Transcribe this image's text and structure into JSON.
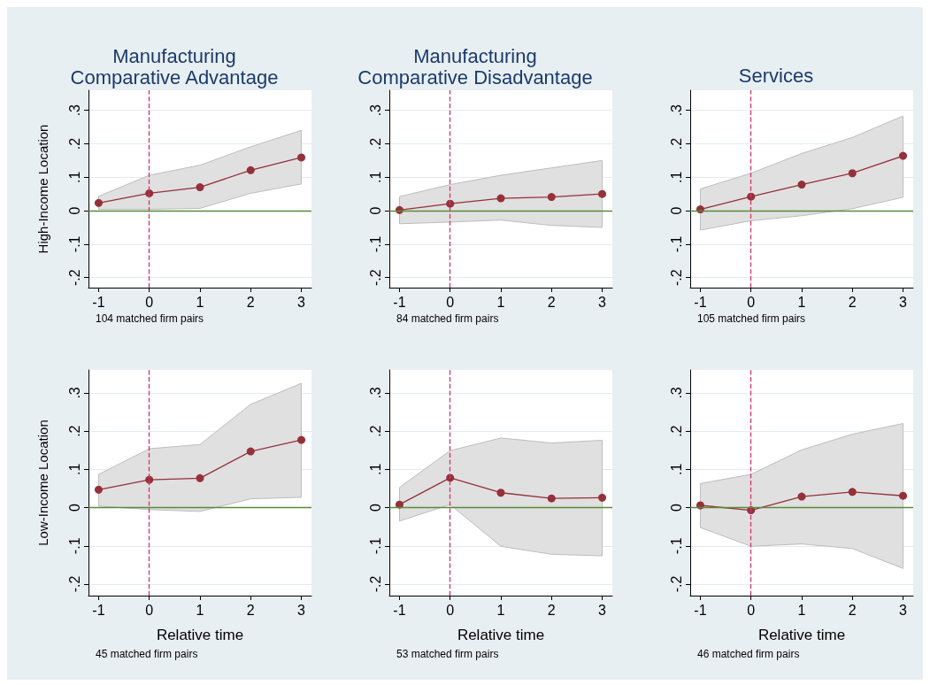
{
  "chart_data": [
    {
      "type": "line",
      "title": "Manufacturing\nComparative Advantage",
      "ylabel": "High-Income Location",
      "x": [
        -1,
        0,
        1,
        2,
        3
      ],
      "series": [
        {
          "color": "#953139",
          "values": [
            0.023,
            0.052,
            0.07,
            0.121,
            0.159
          ],
          "lower": [
            0.004,
            0.004,
            0.007,
            0.052,
            0.08
          ],
          "upper": [
            0.043,
            0.106,
            0.136,
            0.191,
            0.24
          ]
        }
      ],
      "xlim": [
        -1.2,
        3.2
      ],
      "ylim": [
        -0.23,
        0.36
      ],
      "xticks": [
        -1,
        0,
        1,
        2,
        3
      ],
      "yticks": [
        {
          "value": -0.2,
          "label": "-.2"
        },
        {
          "value": -0.1,
          "label": "-.1"
        },
        {
          "value": 0,
          "label": "0"
        },
        {
          "value": 0.1,
          "label": ".1"
        },
        {
          "value": 0.2,
          "label": ".2"
        },
        {
          "value": 0.3,
          "label": ".3"
        }
      ],
      "grid": "y",
      "marker": "circle",
      "line_style": "solid",
      "ref_lines": [
        {
          "axis": "x",
          "value": 0,
          "color": "#d6336c",
          "line_style": "dashed"
        },
        {
          "axis": "y",
          "value": 0,
          "color": "#5a8a3a",
          "line_style": "solid"
        }
      ],
      "annotations": [
        "104 matched firm pairs"
      ]
    },
    {
      "type": "line",
      "title": "Manufacturing\nComparative Disadvantage",
      "x": [
        -1,
        0,
        1,
        2,
        3
      ],
      "series": [
        {
          "color": "#953139",
          "values": [
            0.002,
            0.021,
            0.037,
            0.041,
            0.05
          ],
          "lower": [
            -0.039,
            -0.034,
            -0.028,
            -0.044,
            -0.05
          ],
          "upper": [
            0.042,
            0.078,
            0.106,
            0.128,
            0.15
          ]
        }
      ],
      "xlim": [
        -1.2,
        3.2
      ],
      "ylim": [
        -0.23,
        0.36
      ],
      "xticks": [
        -1,
        0,
        1,
        2,
        3
      ],
      "yticks": [
        {
          "value": -0.2,
          "label": "-.2"
        },
        {
          "value": -0.1,
          "label": "-.1"
        },
        {
          "value": 0,
          "label": "0"
        },
        {
          "value": 0.1,
          "label": ".1"
        },
        {
          "value": 0.2,
          "label": ".2"
        },
        {
          "value": 0.3,
          "label": ".3"
        }
      ],
      "grid": "y",
      "marker": "circle",
      "line_style": "solid",
      "ref_lines": [
        {
          "axis": "x",
          "value": 0,
          "color": "#d6336c",
          "line_style": "dashed"
        },
        {
          "axis": "y",
          "value": 0,
          "color": "#5a8a3a",
          "line_style": "solid"
        }
      ],
      "annotations": [
        "84 matched firm pairs"
      ]
    },
    {
      "type": "line",
      "title": "Services",
      "x": [
        -1,
        0,
        1,
        2,
        3
      ],
      "series": [
        {
          "color": "#953139",
          "values": [
            0.004,
            0.042,
            0.078,
            0.112,
            0.164
          ],
          "lower": [
            -0.058,
            -0.03,
            -0.015,
            0.006,
            0.04
          ],
          "upper": [
            0.065,
            0.112,
            0.171,
            0.219,
            0.283
          ]
        }
      ],
      "xlim": [
        -1.2,
        3.2
      ],
      "ylim": [
        -0.23,
        0.36
      ],
      "xticks": [
        -1,
        0,
        1,
        2,
        3
      ],
      "yticks": [
        {
          "value": -0.2,
          "label": "-.2"
        },
        {
          "value": -0.1,
          "label": "-.1"
        },
        {
          "value": 0,
          "label": "0"
        },
        {
          "value": 0.1,
          "label": ".1"
        },
        {
          "value": 0.2,
          "label": ".2"
        },
        {
          "value": 0.3,
          "label": ".3"
        }
      ],
      "grid": "y",
      "marker": "circle",
      "line_style": "solid",
      "ref_lines": [
        {
          "axis": "x",
          "value": 0,
          "color": "#d6336c",
          "line_style": "dashed"
        },
        {
          "axis": "y",
          "value": 0,
          "color": "#5a8a3a",
          "line_style": "solid"
        }
      ],
      "annotations": [
        "105 matched firm pairs"
      ]
    },
    {
      "type": "line",
      "ylabel": "Low-Income Location",
      "xlabel": "Relative time",
      "x": [
        -1,
        0,
        1,
        2,
        3
      ],
      "series": [
        {
          "color": "#953139",
          "values": [
            0.047,
            0.073,
            0.077,
            0.147,
            0.177
          ],
          "lower": [
            0.004,
            -0.005,
            -0.01,
            0.023,
            0.027
          ],
          "upper": [
            0.087,
            0.154,
            0.165,
            0.27,
            0.325
          ]
        }
      ],
      "xlim": [
        -1.2,
        3.2
      ],
      "ylim": [
        -0.23,
        0.36
      ],
      "xticks": [
        -1,
        0,
        1,
        2,
        3
      ],
      "yticks": [
        {
          "value": -0.2,
          "label": "-.2"
        },
        {
          "value": -0.1,
          "label": "-.1"
        },
        {
          "value": 0,
          "label": "0"
        },
        {
          "value": 0.1,
          "label": ".1"
        },
        {
          "value": 0.2,
          "label": ".2"
        },
        {
          "value": 0.3,
          "label": ".3"
        }
      ],
      "grid": "y",
      "marker": "circle",
      "line_style": "solid",
      "ref_lines": [
        {
          "axis": "x",
          "value": 0,
          "color": "#d6336c",
          "line_style": "dashed"
        },
        {
          "axis": "y",
          "value": 0,
          "color": "#5a8a3a",
          "line_style": "solid"
        }
      ],
      "annotations": [
        "45 matched firm pairs"
      ]
    },
    {
      "type": "line",
      "xlabel": "Relative time",
      "x": [
        -1,
        0,
        1,
        2,
        3
      ],
      "series": [
        {
          "color": "#953139",
          "values": [
            0.008,
            0.078,
            0.039,
            0.024,
            0.026
          ],
          "lower": [
            -0.035,
            0.008,
            -0.101,
            -0.122,
            -0.126
          ],
          "upper": [
            0.053,
            0.149,
            0.182,
            0.169,
            0.176
          ]
        }
      ],
      "xlim": [
        -1.2,
        3.2
      ],
      "ylim": [
        -0.23,
        0.36
      ],
      "xticks": [
        -1,
        0,
        1,
        2,
        3
      ],
      "yticks": [
        {
          "value": -0.2,
          "label": "-.2"
        },
        {
          "value": -0.1,
          "label": "-.1"
        },
        {
          "value": 0,
          "label": "0"
        },
        {
          "value": 0.1,
          "label": ".1"
        },
        {
          "value": 0.2,
          "label": ".2"
        },
        {
          "value": 0.3,
          "label": ".3"
        }
      ],
      "grid": "y",
      "marker": "circle",
      "line_style": "solid",
      "ref_lines": [
        {
          "axis": "x",
          "value": 0,
          "color": "#d6336c",
          "line_style": "dashed"
        },
        {
          "axis": "y",
          "value": 0,
          "color": "#5a8a3a",
          "line_style": "solid"
        }
      ],
      "annotations": [
        "53 matched firm pairs"
      ]
    },
    {
      "type": "line",
      "xlabel": "Relative time",
      "x": [
        -1,
        0,
        1,
        2,
        3
      ],
      "series": [
        {
          "color": "#953139",
          "values": [
            0.006,
            -0.007,
            0.029,
            0.041,
            0.031
          ],
          "lower": [
            -0.052,
            -0.101,
            -0.095,
            -0.107,
            -0.159
          ],
          "upper": [
            0.063,
            0.087,
            0.151,
            0.192,
            0.22
          ]
        }
      ],
      "xlim": [
        -1.2,
        3.2
      ],
      "ylim": [
        -0.23,
        0.36
      ],
      "xticks": [
        -1,
        0,
        1,
        2,
        3
      ],
      "yticks": [
        {
          "value": -0.2,
          "label": "-.2"
        },
        {
          "value": -0.1,
          "label": "-.1"
        },
        {
          "value": 0,
          "label": "0"
        },
        {
          "value": 0.1,
          "label": ".1"
        },
        {
          "value": 0.2,
          "label": ".2"
        },
        {
          "value": 0.3,
          "label": ".3"
        }
      ],
      "grid": "y",
      "marker": "circle",
      "line_style": "solid",
      "ref_lines": [
        {
          "axis": "x",
          "value": 0,
          "color": "#d6336c",
          "line_style": "dashed"
        },
        {
          "axis": "y",
          "value": 0,
          "color": "#5a8a3a",
          "line_style": "solid"
        }
      ],
      "annotations": [
        "46 matched firm pairs"
      ]
    }
  ]
}
